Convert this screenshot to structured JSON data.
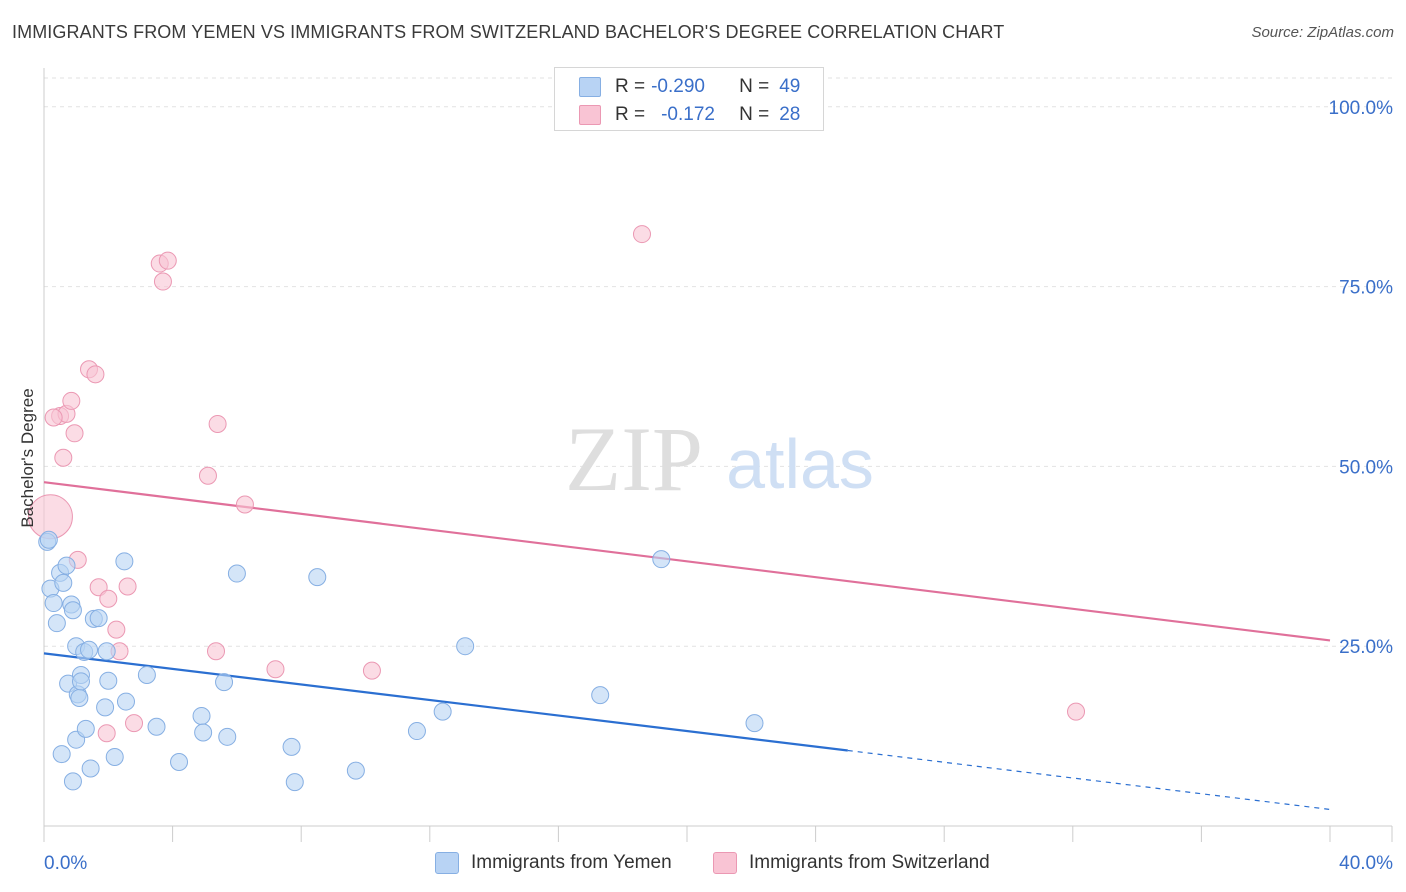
{
  "title": "IMMIGRANTS FROM YEMEN VS IMMIGRANTS FROM SWITZERLAND BACHELOR'S DEGREE CORRELATION CHART",
  "source": "Source: ZipAtlas.com",
  "watermark": {
    "zip": "ZIP",
    "atlas": "atlas"
  },
  "legend": {
    "r_label": "R =",
    "n_label": "N =",
    "rows": [
      {
        "r": "-0.290",
        "n": "49"
      },
      {
        "r": "-0.172",
        "n": "28"
      }
    ]
  },
  "colors": {
    "yemen_fill": "#b8d3f4",
    "yemen_stroke": "#86afe3",
    "yemen_line": "#2b6fd1",
    "swiss_fill": "#f9c4d4",
    "swiss_stroke": "#eb98b3",
    "swiss_line": "#e0709a",
    "tick_label": "#3a6fc9"
  },
  "chart_data": {
    "type": "scatter",
    "title": "IMMIGRANTS FROM YEMEN VS IMMIGRANTS FROM SWITZERLAND BACHELOR'S DEGREE CORRELATION CHART",
    "xlabel": "",
    "ylabel": "Bachelor's Degree",
    "xlim": [
      0,
      40
    ],
    "ylim": [
      0,
      104
    ],
    "x_tick_labels": [
      "0.0%",
      "40.0%"
    ],
    "y_ticks": [
      25,
      50,
      75,
      100
    ],
    "y_tick_labels": [
      "25.0%",
      "50.0%",
      "75.0%",
      "100.0%"
    ],
    "grid": true,
    "series": [
      {
        "name": "Immigrants from Yemen",
        "r": -0.29,
        "n": 49,
        "trend": {
          "x0": 0,
          "y0": 24.0,
          "x1": 25,
          "y1": 10.5,
          "dash_to_x": 40,
          "dash_to_y": 2.3
        },
        "points": [
          [
            0.1,
            39.5
          ],
          [
            0.15,
            39.8
          ],
          [
            0.2,
            33.0
          ],
          [
            0.3,
            31.0
          ],
          [
            0.4,
            28.2
          ],
          [
            0.5,
            35.2
          ],
          [
            0.6,
            33.8
          ],
          [
            0.7,
            36.2
          ],
          [
            0.75,
            19.8
          ],
          [
            0.85,
            30.8
          ],
          [
            0.9,
            6.2
          ],
          [
            0.9,
            30.0
          ],
          [
            1.0,
            12.0
          ],
          [
            1.0,
            25.0
          ],
          [
            1.05,
            18.3
          ],
          [
            1.1,
            17.8
          ],
          [
            1.15,
            21.0
          ],
          [
            1.15,
            20.1
          ],
          [
            1.25,
            24.2
          ],
          [
            1.3,
            13.5
          ],
          [
            1.4,
            24.5
          ],
          [
            1.45,
            8.0
          ],
          [
            1.55,
            28.8
          ],
          [
            1.7,
            28.9
          ],
          [
            1.9,
            16.5
          ],
          [
            1.95,
            24.3
          ],
          [
            2.2,
            9.6
          ],
          [
            2.5,
            36.8
          ],
          [
            2.55,
            17.3
          ],
          [
            3.5,
            13.8
          ],
          [
            3.2,
            21.0
          ],
          [
            4.2,
            8.9
          ],
          [
            4.9,
            15.3
          ],
          [
            4.95,
            13.0
          ],
          [
            5.6,
            20.0
          ],
          [
            5.7,
            12.4
          ],
          [
            6.0,
            35.1
          ],
          [
            7.8,
            6.1
          ],
          [
            7.7,
            11.0
          ],
          [
            8.5,
            34.6
          ],
          [
            9.7,
            7.7
          ],
          [
            11.6,
            13.2
          ],
          [
            12.4,
            15.9
          ],
          [
            13.1,
            25.0
          ],
          [
            17.3,
            18.2
          ],
          [
            19.2,
            37.1
          ],
          [
            22.1,
            14.3
          ],
          [
            0.55,
            10.0
          ],
          [
            2.0,
            20.2
          ]
        ]
      },
      {
        "name": "Immigrants from Switzerland",
        "r": -0.172,
        "n": 28,
        "trend": {
          "x0": 0,
          "y0": 47.8,
          "x1": 40,
          "y1": 25.8
        },
        "points": [
          [
            0.2,
            43.0
          ],
          [
            0.5,
            57.0
          ],
          [
            0.6,
            51.2
          ],
          [
            0.7,
            57.3
          ],
          [
            0.85,
            59.1
          ],
          [
            0.95,
            54.6
          ],
          [
            1.05,
            37.0
          ],
          [
            1.4,
            63.5
          ],
          [
            1.6,
            62.8
          ],
          [
            1.7,
            33.2
          ],
          [
            2.0,
            31.6
          ],
          [
            2.25,
            27.3
          ],
          [
            2.35,
            24.3
          ],
          [
            1.95,
            12.9
          ],
          [
            2.6,
            33.3
          ],
          [
            2.8,
            14.3
          ],
          [
            3.6,
            78.2
          ],
          [
            3.7,
            75.7
          ],
          [
            3.85,
            78.6
          ],
          [
            5.1,
            48.7
          ],
          [
            5.35,
            24.3
          ],
          [
            5.4,
            55.9
          ],
          [
            6.25,
            44.7
          ],
          [
            7.2,
            21.8
          ],
          [
            10.2,
            21.6
          ],
          [
            18.6,
            82.3
          ],
          [
            32.1,
            15.9
          ],
          [
            0.3,
            56.8
          ]
        ]
      }
    ]
  },
  "bottom_legend": {
    "yemen": "Immigrants from Yemen",
    "switzerland": "Immigrants from Switzerland"
  }
}
